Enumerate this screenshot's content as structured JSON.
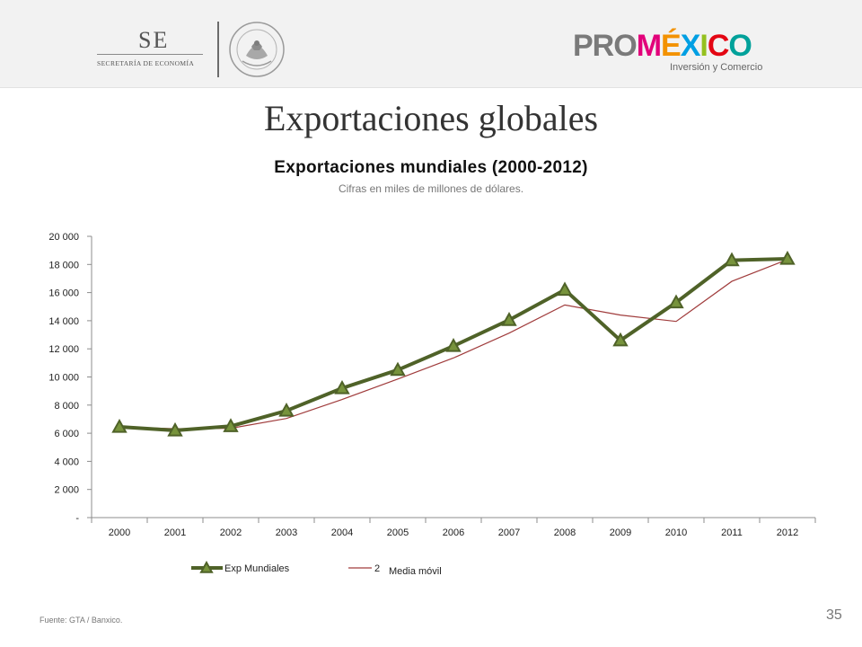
{
  "header": {
    "se_logo": {
      "letters": "SE",
      "subtitle": "SECRETARÍA DE ECONOMÍA"
    },
    "seal_icon": "mexican-coat-of-arms-seal",
    "promexico_logo": {
      "pro": "PRO",
      "mexico": "MÉXICO",
      "tagline": "Inversión y Comercio"
    }
  },
  "slide": {
    "title": "Exportaciones globales",
    "source": "Fuente: GTA / Banxico.",
    "page_number": "35"
  },
  "colors": {
    "series_main": "#4f6228",
    "marker_fill": "#77933c",
    "series_avg": "#a03c3c",
    "mexico_m": "#e2007a",
    "mexico_e": "#f39200",
    "mexico_x": "#009fe3",
    "mexico_i": "#95c11f",
    "mexico_c": "#e30613",
    "mexico_o": "#00a19a",
    "pro_gray": "#7a7a7a"
  },
  "chart_data": {
    "type": "line",
    "title": "Exportaciones mundiales (2000-2012)",
    "subtitle": "Cifras en miles de millones de dólares.",
    "xlabel": "",
    "ylabel": "",
    "categories": [
      "2000",
      "2001",
      "2002",
      "2003",
      "2004",
      "2005",
      "2006",
      "2007",
      "2008",
      "2009",
      "2010",
      "2011",
      "2012"
    ],
    "ylim": [
      0,
      20000
    ],
    "yticks": [
      0,
      2000,
      4000,
      6000,
      8000,
      10000,
      12000,
      14000,
      16000,
      18000,
      20000
    ],
    "ytick_labels": [
      "-",
      "2 000",
      "4 000",
      "6 000",
      "8 000",
      "10 000",
      "12 000",
      "14 000",
      "16 000",
      "18 000",
      "20 000"
    ],
    "grid": false,
    "legend_position": "bottom",
    "series": [
      {
        "name": "Exp Mundiales",
        "marker": "triangle",
        "values": [
          6450,
          6200,
          6500,
          7600,
          9200,
          10500,
          12200,
          14050,
          16200,
          12600,
          15300,
          18300,
          18400
        ]
      },
      {
        "name": "Media móvil",
        "legend_prefix": "2",
        "marker": "none",
        "values": [
          6450,
          6320,
          6350,
          7050,
          8400,
          9850,
          11350,
          13120,
          15120,
          14400,
          13950,
          16800,
          18350
        ]
      }
    ]
  }
}
